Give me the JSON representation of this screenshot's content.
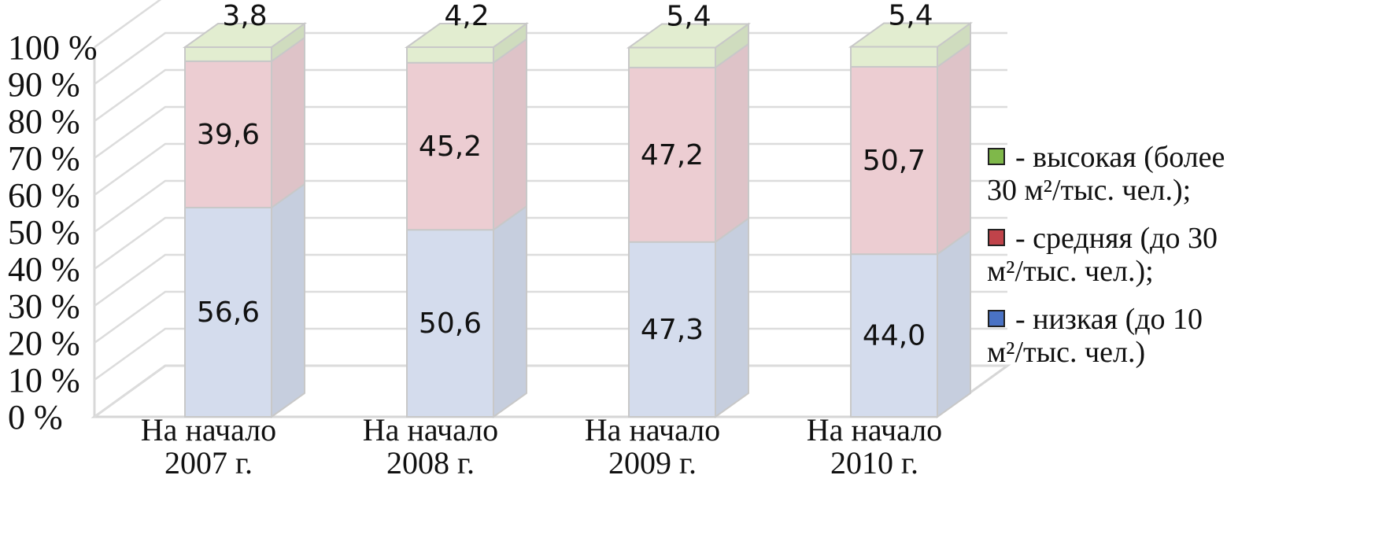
{
  "chart_data": {
    "type": "bar",
    "stacked": true,
    "three_d": true,
    "categories": [
      [
        "На начало",
        "2007 г."
      ],
      [
        "На начало",
        "2008 г."
      ],
      [
        "На начало",
        "2009 г."
      ],
      [
        "На начало",
        "2010 г."
      ]
    ],
    "series": [
      {
        "name": "- низкая (до 10 м²/тыс. чел.)",
        "legend_lines": [
          "- низкая (до 10",
          "м²/тыс. чел.)"
        ],
        "values": [
          56.6,
          50.6,
          47.3,
          44.0
        ],
        "labels": [
          "56,6",
          "50,6",
          "47,3",
          "44,0"
        ],
        "color": "#d4dced",
        "side_color": "#c6cede",
        "legend_color": "#4a72c4"
      },
      {
        "name": "- средняя (до 30 м²/тыс. чел.);",
        "legend_lines": [
          "- средняя (до 30",
          "м²/тыс. чел.);"
        ],
        "values": [
          39.6,
          45.2,
          47.2,
          50.7
        ],
        "labels": [
          "39,6",
          "45,2",
          "47,2",
          "50,7"
        ],
        "color": "#eccdd2",
        "side_color": "#dec3c8",
        "legend_color": "#c0434a"
      },
      {
        "name": "- высокая (более 30 м²/тыс. чел.);",
        "legend_lines": [
          "- высокая (более",
          "30 м²/тыс. чел.);"
        ],
        "values": [
          3.8,
          4.2,
          5.4,
          5.4
        ],
        "labels": [
          "3,8",
          "4,2",
          "5,4",
          "5,4"
        ],
        "color": "#e2edd0",
        "side_color": "#cfdcbe",
        "legend_color": "#7fb84a"
      }
    ],
    "ylim": [
      0,
      100
    ],
    "yticks": [
      "0 %",
      "10 %",
      "20 %",
      "30 %",
      "40 %",
      "50 %",
      "60 %",
      "70 %",
      "80 %",
      "90 %",
      "100 %"
    ],
    "grid": true,
    "legend_position": "right",
    "title": "",
    "xlabel": "",
    "ylabel": ""
  }
}
